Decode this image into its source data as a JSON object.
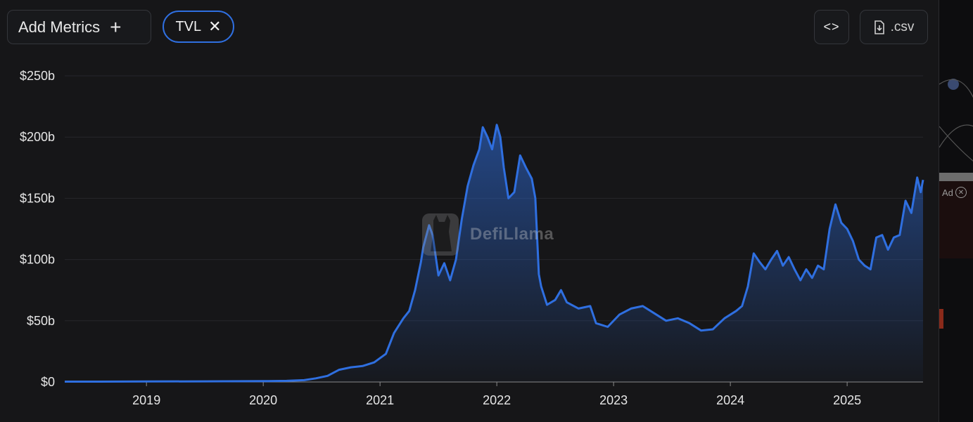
{
  "toolbar": {
    "add_metrics_label": "Add Metrics",
    "add_icon": "plus-icon",
    "metric_chip_label": "TVL",
    "remove_icon": "close-icon",
    "embed_icon": "code-icon",
    "csv_label": ".csv",
    "csv_icon": "file-download-icon"
  },
  "watermark": {
    "text": "DefiLlama",
    "icon": "llama-logo-icon"
  },
  "ad": {
    "label": "Ad"
  },
  "colors": {
    "background": "#161618",
    "line": "#2f6fe0",
    "chip_border": "#2f6fe0"
  },
  "chart_data": {
    "type": "area",
    "title": "",
    "xlabel": "",
    "ylabel": "",
    "grid": true,
    "y_tick_labels": [
      "$0",
      "$50b",
      "$100b",
      "$150b",
      "$200b",
      "$250b"
    ],
    "y_tick_values": [
      0,
      50,
      100,
      150,
      200,
      250
    ],
    "ylim": [
      0,
      250
    ],
    "y_unit": "billion USD",
    "x_tick_labels": [
      "2019",
      "2020",
      "2021",
      "2022",
      "2023",
      "2024",
      "2025"
    ],
    "x_tick_values": [
      2019,
      2020,
      2021,
      2022,
      2023,
      2024,
      2025
    ],
    "xlim": [
      2018.3,
      2025.65
    ],
    "series": [
      {
        "x": [
          2018.3,
          2018.6,
          2019.0,
          2019.5,
          2020.0,
          2020.2,
          2020.35,
          2020.45,
          2020.55,
          2020.65,
          2020.75,
          2020.85,
          2020.95,
          2021.05,
          2021.12,
          2021.2,
          2021.25,
          2021.3,
          2021.35,
          2021.37,
          2021.42,
          2021.45,
          2021.5,
          2021.55,
          2021.6,
          2021.65,
          2021.7,
          2021.75,
          2021.8,
          2021.85,
          2021.88,
          2021.92,
          2021.96,
          2022.0,
          2022.03,
          2022.06,
          2022.1,
          2022.15,
          2022.2,
          2022.25,
          2022.3,
          2022.33,
          2022.36,
          2022.38,
          2022.43,
          2022.5,
          2022.55,
          2022.6,
          2022.7,
          2022.8,
          2022.85,
          2022.95,
          2023.05,
          2023.15,
          2023.25,
          2023.35,
          2023.45,
          2023.55,
          2023.65,
          2023.75,
          2023.85,
          2023.95,
          2024.05,
          2024.1,
          2024.15,
          2024.2,
          2024.25,
          2024.3,
          2024.35,
          2024.4,
          2024.45,
          2024.5,
          2024.55,
          2024.6,
          2024.65,
          2024.7,
          2024.75,
          2024.8,
          2024.85,
          2024.9,
          2024.95,
          2025.0,
          2025.05,
          2025.1,
          2025.15,
          2025.2,
          2025.25,
          2025.3,
          2025.35,
          2025.4,
          2025.45,
          2025.5,
          2025.55,
          2025.6,
          2025.63,
          2025.65
        ],
        "y": [
          0.3,
          0.3,
          0.4,
          0.5,
          0.7,
          0.9,
          1.5,
          3,
          5,
          10,
          12,
          13,
          16,
          23,
          40,
          52,
          58,
          75,
          98,
          110,
          128,
          120,
          87,
          97,
          83,
          100,
          133,
          160,
          177,
          190,
          208,
          200,
          190,
          210,
          200,
          175,
          150,
          155,
          185,
          175,
          166,
          150,
          88,
          78,
          63,
          67,
          75,
          65,
          60,
          62,
          48,
          45,
          55,
          60,
          62,
          56,
          50,
          52,
          48,
          42,
          43,
          52,
          58,
          62,
          78,
          105,
          98,
          92,
          100,
          107,
          95,
          102,
          92,
          83,
          92,
          85,
          95,
          92,
          125,
          145,
          130,
          125,
          115,
          100,
          95,
          92,
          118,
          120,
          108,
          118,
          120,
          148,
          138,
          167,
          155,
          165
        ]
      }
    ]
  }
}
